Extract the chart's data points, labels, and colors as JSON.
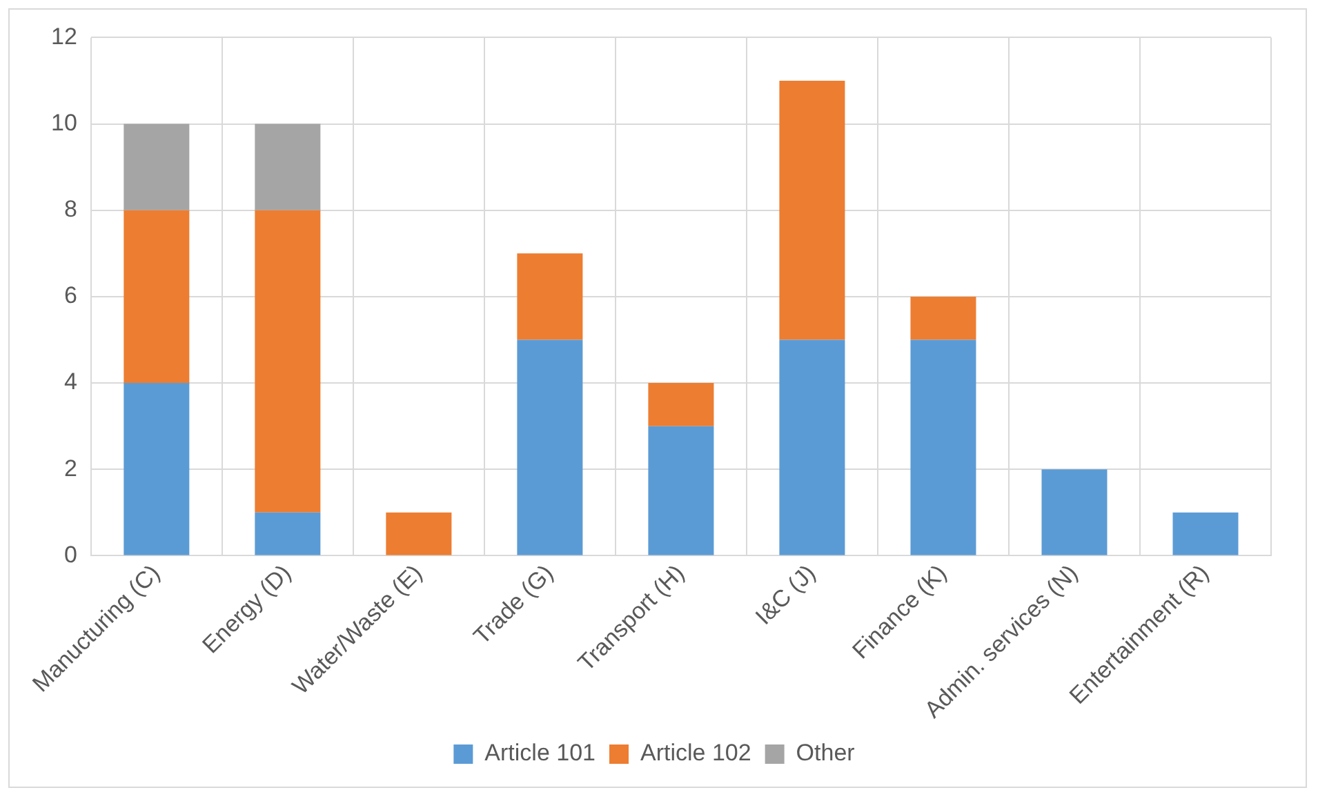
{
  "chart_data": {
    "type": "bar",
    "stacked": true,
    "categories": [
      "Manucturing (C)",
      "Energy (D)",
      "Water/Waste (E)",
      "Trade (G)",
      "Transport (H)",
      "I&C (J)",
      "Finance (K)",
      "Admin. services (N)",
      "Entertainment (R)"
    ],
    "series": [
      {
        "name": "Article 101",
        "color": "#5b9bd5",
        "values": [
          4,
          1,
          0,
          5,
          3,
          5,
          5,
          2,
          1
        ]
      },
      {
        "name": "Article 102",
        "color": "#ed7d31",
        "values": [
          4,
          7,
          1,
          2,
          1,
          6,
          1,
          0,
          0
        ]
      },
      {
        "name": "Other",
        "color": "#a5a5a5",
        "values": [
          2,
          2,
          0,
          0,
          0,
          0,
          0,
          0,
          0
        ]
      }
    ],
    "ylim": [
      0,
      12
    ],
    "yticks": [
      0,
      2,
      4,
      6,
      8,
      10,
      12
    ],
    "grid": true,
    "legend": "bottom"
  }
}
